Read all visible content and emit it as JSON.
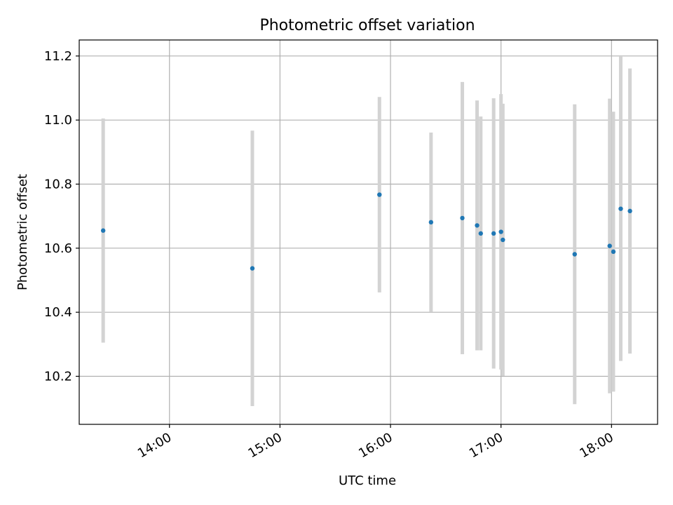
{
  "chart_data": {
    "type": "scatter",
    "title": "Photometric offset variation",
    "xlabel": "UTC time",
    "ylabel": "Photometric offset",
    "x_axis": "time",
    "x_tick_labels": [
      "14:00",
      "15:00",
      "16:00",
      "17:00",
      "18:00"
    ],
    "x_tick_values": [
      "14:00",
      "15:00",
      "16:00",
      "17:00",
      "18:00"
    ],
    "xlim": [
      "13:11",
      "18:25"
    ],
    "ylim": [
      10.05,
      11.25
    ],
    "y_ticks": [
      10.2,
      10.4,
      10.6,
      10.8,
      11.0,
      11.2
    ],
    "y_tick_labels": [
      "10.2",
      "10.4",
      "10.6",
      "10.8",
      "11.0",
      "11.2"
    ],
    "grid": true,
    "colors": {
      "point": "#1f77b4",
      "error_bar": "#d3d3d3",
      "grid": "#b0b0b0"
    },
    "series": [
      {
        "points": [
          {
            "x": "13:24",
            "y": 10.655,
            "ylow": 10.305,
            "yhigh": 11.005
          },
          {
            "x": "14:45",
            "y": 10.537,
            "ylow": 10.107,
            "yhigh": 10.967
          },
          {
            "x": "15:54",
            "y": 10.767,
            "ylow": 10.462,
            "yhigh": 11.072
          },
          {
            "x": "16:22",
            "y": 10.681,
            "ylow": 10.401,
            "yhigh": 10.961
          },
          {
            "x": "16:39",
            "y": 10.694,
            "ylow": 10.269,
            "yhigh": 11.119
          },
          {
            "x": "16:47",
            "y": 10.671,
            "ylow": 10.281,
            "yhigh": 11.061
          },
          {
            "x": "16:49",
            "y": 10.646,
            "ylow": 10.281,
            "yhigh": 11.011
          },
          {
            "x": "16:56",
            "y": 10.646,
            "ylow": 10.224,
            "yhigh": 11.068
          },
          {
            "x": "17:00",
            "y": 10.651,
            "ylow": 10.221,
            "yhigh": 11.081
          },
          {
            "x": "17:01",
            "y": 10.626,
            "ylow": 10.201,
            "yhigh": 11.051
          },
          {
            "x": "17:40",
            "y": 10.581,
            "ylow": 10.113,
            "yhigh": 11.049
          },
          {
            "x": "17:59",
            "y": 10.607,
            "ylow": 10.147,
            "yhigh": 11.067
          },
          {
            "x": "18:01",
            "y": 10.589,
            "ylow": 10.152,
            "yhigh": 11.026
          },
          {
            "x": "18:05",
            "y": 10.723,
            "ylow": 10.248,
            "yhigh": 11.198
          },
          {
            "x": "18:10",
            "y": 10.716,
            "ylow": 10.271,
            "yhigh": 11.161
          }
        ]
      }
    ]
  }
}
